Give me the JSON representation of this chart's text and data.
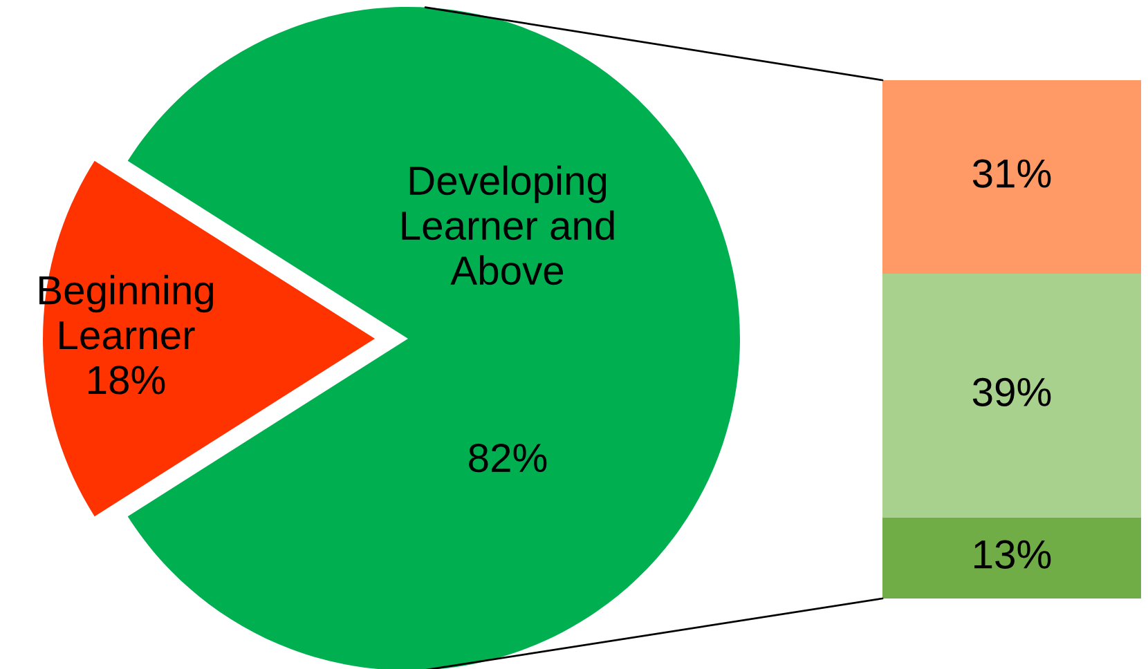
{
  "chart_data": [
    {
      "type": "pie",
      "categories": [
        "Beginning Learner",
        "Developing Learner and Above"
      ],
      "values": [
        18,
        82
      ],
      "colors": [
        "#ff3300",
        "#00b050"
      ],
      "value_labels": [
        "18%",
        "82%"
      ]
    },
    {
      "type": "bar",
      "stacked": true,
      "categories": [
        null
      ],
      "series": [
        {
          "color": "#70ad47",
          "values": [
            13
          ],
          "value_labels": [
            "13%"
          ]
        },
        {
          "color": "#a9d18e",
          "values": [
            39
          ],
          "value_labels": [
            "39%"
          ]
        },
        {
          "color": "#ff9966",
          "values": [
            31
          ],
          "value_labels": [
            "31%"
          ]
        }
      ]
    }
  ]
}
